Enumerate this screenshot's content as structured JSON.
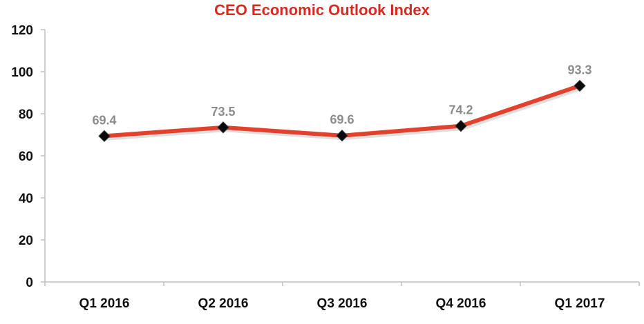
{
  "chart_data": {
    "type": "line",
    "title": "CEO Economic Outlook Index",
    "categories": [
      "Q1 2016",
      "Q2 2016",
      "Q3 2016",
      "Q4 2016",
      "Q1 2017"
    ],
    "series": [
      {
        "values": [
          69.4,
          73.5,
          69.6,
          74.2,
          93.3
        ]
      }
    ],
    "data_labels": [
      "69.4",
      "73.5",
      "69.6",
      "74.2",
      "93.3"
    ],
    "ylim": [
      0,
      120
    ],
    "yticks": [
      0,
      20,
      40,
      60,
      80,
      100,
      120
    ],
    "grid": false,
    "legend": "none",
    "xlabel": "",
    "ylabel": "",
    "colors": {
      "title": "#d62b20",
      "line": "#e2412d",
      "marker": "#0a0a0a",
      "data_label": "#8c8c8c",
      "axis": "#bfbfbf"
    }
  }
}
